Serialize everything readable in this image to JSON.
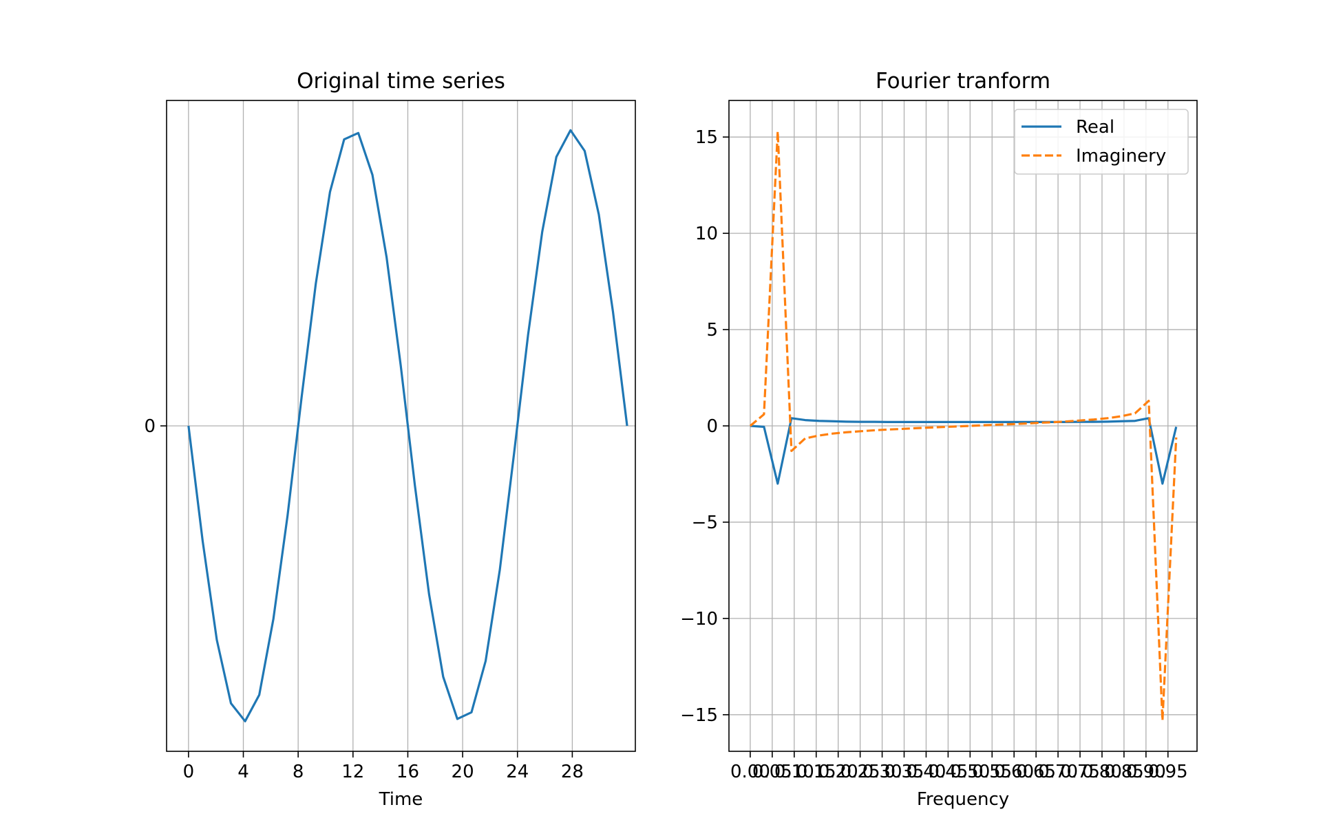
{
  "chart_data": [
    {
      "type": "line",
      "title": "Original time series",
      "xlabel": "Time",
      "ylabel": "",
      "xlim": [
        -1.6,
        32.6
      ],
      "ylim": [
        -1.1,
        1.1
      ],
      "xticks": [
        0,
        4,
        8,
        12,
        16,
        20,
        24,
        28
      ],
      "xtick_labels": [
        "0",
        "4",
        "8",
        "12",
        "16",
        "20",
        "24",
        "28"
      ],
      "yticks": [
        0
      ],
      "ytick_labels": [
        "0"
      ],
      "grid": true,
      "series": [
        {
          "color": "#1f77b4",
          "style": "solid",
          "x": [
            0,
            1.032,
            2.065,
            3.097,
            4.129,
            5.161,
            6.194,
            7.226,
            8.258,
            9.29,
            10.323,
            11.355,
            12.387,
            13.419,
            14.452,
            15.484,
            16.516,
            17.548,
            18.581,
            19.613,
            20.645,
            21.677,
            22.71,
            23.742,
            24.774,
            25.806,
            26.839,
            27.871,
            28.903,
            29.935,
            30.968,
            32
          ],
          "y": [
            0,
            -0.3892,
            -0.7234,
            -0.9378,
            -0.9984,
            -0.9094,
            -0.6521,
            -0.3033,
            0.0995,
            0.4818,
            0.7909,
            0.9685,
            0.99,
            0.8484,
            0.5699,
            0.2038,
            -0.2012,
            -0.5679,
            -0.8481,
            -0.9906,
            -0.9681,
            -0.7948,
            -0.4873,
            -0.0967,
            0.3077,
            0.6559,
            0.9094,
            0.9994,
            0.9294,
            0.7145,
            0.3857,
            0
          ]
        }
      ]
    },
    {
      "type": "line",
      "title": "Fourier tranform",
      "xlabel": "Frequency",
      "ylabel": "",
      "xlim": [
        -0.0484,
        1.0161
      ],
      "ylim": [
        -16.9,
        16.9
      ],
      "xticks": [
        0.0,
        0.05,
        0.1,
        0.15,
        0.2,
        0.25,
        0.3,
        0.35,
        0.4,
        0.45,
        0.5,
        0.55,
        0.6,
        0.65,
        0.7,
        0.75,
        0.8,
        0.85,
        0.9,
        0.95
      ],
      "xtick_labels": [
        "0.00",
        "0.05",
        "0.10",
        "0.15",
        "0.20",
        "0.25",
        "0.30",
        "0.35",
        "0.40",
        "0.45",
        "0.50",
        "0.55",
        "0.60",
        "0.65",
        "0.70",
        "0.75",
        "0.80",
        "0.85",
        "0.90",
        "0.95"
      ],
      "yticks": [
        15,
        10,
        5,
        0,
        -5,
        -10,
        -15
      ],
      "ytick_labels": [
        "15",
        "10",
        "5",
        "0",
        "−5",
        "−10",
        "−15"
      ],
      "grid": true,
      "legend_position": "top-right",
      "series": [
        {
          "name": "Real",
          "color": "#1f77b4",
          "style": "solid",
          "x": [
            0,
            0.03125,
            0.0625,
            0.09375,
            0.125,
            0.15625,
            0.1875,
            0.21875,
            0.25,
            0.28125,
            0.3125,
            0.34375,
            0.375,
            0.40625,
            0.4375,
            0.46875,
            0.5,
            0.53125,
            0.5625,
            0.59375,
            0.625,
            0.65625,
            0.6875,
            0.71875,
            0.75,
            0.78125,
            0.8125,
            0.84375,
            0.875,
            0.90625,
            0.9375,
            0.96875
          ],
          "y": [
            0,
            -0.05,
            -3.0,
            0.4,
            0.3,
            0.26,
            0.24,
            0.22,
            0.21,
            0.21,
            0.2,
            0.2,
            0.2,
            0.2,
            0.2,
            0.2,
            0.2,
            0.2,
            0.2,
            0.2,
            0.2,
            0.2,
            0.2,
            0.2,
            0.21,
            0.21,
            0.22,
            0.24,
            0.26,
            0.4,
            -3.0,
            -0.05
          ]
        },
        {
          "name": "Imaginery",
          "color": "#ff7f0e",
          "style": "dashed",
          "x": [
            0,
            0.03125,
            0.0625,
            0.09375,
            0.125,
            0.15625,
            0.1875,
            0.21875,
            0.25,
            0.28125,
            0.3125,
            0.34375,
            0.375,
            0.40625,
            0.4375,
            0.46875,
            0.5,
            0.53125,
            0.5625,
            0.59375,
            0.625,
            0.65625,
            0.6875,
            0.71875,
            0.75,
            0.78125,
            0.8125,
            0.84375,
            0.875,
            0.90625,
            0.9375,
            0.96875
          ],
          "y": [
            0,
            0.6,
            15.3,
            -1.3,
            -0.65,
            -0.5,
            -0.4,
            -0.33,
            -0.28,
            -0.23,
            -0.19,
            -0.16,
            -0.12,
            -0.09,
            -0.06,
            -0.03,
            0,
            0.03,
            0.06,
            0.09,
            0.12,
            0.16,
            0.19,
            0.23,
            0.28,
            0.33,
            0.4,
            0.5,
            0.65,
            1.3,
            -15.3,
            -0.6
          ]
        }
      ]
    }
  ]
}
